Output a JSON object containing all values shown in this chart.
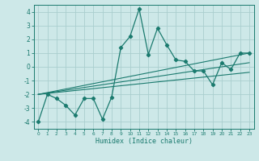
{
  "xlabel": "Humidex (Indice chaleur)",
  "xlim": [
    -0.5,
    23.5
  ],
  "ylim": [
    -4.5,
    4.5
  ],
  "yticks": [
    -4,
    -3,
    -2,
    -1,
    0,
    1,
    2,
    3,
    4
  ],
  "xticks": [
    0,
    1,
    2,
    3,
    4,
    5,
    6,
    7,
    8,
    9,
    10,
    11,
    12,
    13,
    14,
    15,
    16,
    17,
    18,
    19,
    20,
    21,
    22,
    23
  ],
  "line_color": "#1a7a6e",
  "bg_color": "#cde8e8",
  "grid_color": "#aacece",
  "main_line": {
    "x": [
      0,
      1,
      2,
      3,
      4,
      5,
      6,
      7,
      8,
      9,
      10,
      11,
      12,
      13,
      14,
      15,
      16,
      17,
      18,
      19,
      20,
      21,
      22,
      23
    ],
    "y": [
      -4.0,
      -2.0,
      -2.3,
      -2.8,
      -3.5,
      -2.3,
      -2.3,
      -3.8,
      -2.2,
      1.4,
      2.2,
      4.2,
      0.9,
      2.8,
      1.6,
      0.5,
      0.4,
      -0.3,
      -0.3,
      -1.3,
      0.3,
      -0.2,
      1.0,
      1.0
    ]
  },
  "reg_lines": [
    {
      "x": [
        0,
        23
      ],
      "y": [
        -2.0,
        1.0
      ]
    },
    {
      "x": [
        0,
        23
      ],
      "y": [
        -2.0,
        0.3
      ]
    },
    {
      "x": [
        0,
        23
      ],
      "y": [
        -2.0,
        -0.4
      ]
    }
  ]
}
